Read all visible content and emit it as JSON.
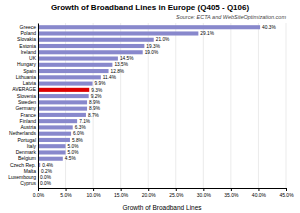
{
  "chart_data": {
    "type": "bar",
    "orientation": "horizontal",
    "title": "Growth of Broadband Lines in Europe (Q405 - Q106)",
    "xlabel": "Growth of Broadband Lines",
    "annotations": [
      "Source: ECTA and WebSiteOptimization.com"
    ],
    "categories": [
      "Cyprus",
      "Luxembourg",
      "Malta",
      "Czech Rep.",
      "Belgium",
      "Denmark",
      "Italy",
      "Portugal",
      "Netherlands",
      "Austria",
      "Finland",
      "France",
      "Germany",
      "Sweden",
      "Slovenia",
      "AVERAGE",
      "Latvia",
      "Lithuania",
      "Spain",
      "Hungary",
      "UK",
      "Ireland",
      "Estonia",
      "Slovakia",
      "Poland",
      "Greece"
    ],
    "values": [
      0.0,
      0.0,
      0.2,
      0.4,
      4.5,
      5.0,
      5.0,
      5.8,
      6.0,
      6.3,
      7.1,
      8.7,
      8.9,
      8.9,
      9.2,
      9.3,
      9.9,
      11.4,
      12.8,
      13.5,
      14.5,
      19.0,
      19.3,
      21.0,
      29.1,
      40.3
    ],
    "value_labels": [
      "0.0%",
      "0.0%",
      "0.2%",
      "0.4%",
      "4.5%",
      "5.0%",
      "5.0%",
      "5.8%",
      "6.0%",
      "6.3%",
      "7.1%",
      "8.7%",
      "8.9%",
      "8.9%",
      "9.2%",
      "9.3%",
      "9.9%",
      "11.4%",
      "12.8%",
      "13.5%",
      "14.5%",
      "19.0%",
      "19.3%",
      "21.0%",
      "29.1%",
      "40.3%"
    ],
    "data_labels": true,
    "colors": [
      "#8888cc",
      "#8888cc",
      "#8888cc",
      "#8888cc",
      "#8888cc",
      "#8888cc",
      "#8888cc",
      "#8888cc",
      "#8888cc",
      "#8888cc",
      "#8888cc",
      "#8888cc",
      "#8888cc",
      "#8888cc",
      "#8888cc",
      "#dd0000",
      "#8888cc",
      "#8888cc",
      "#8888cc",
      "#8888cc",
      "#8888cc",
      "#8888cc",
      "#8888cc",
      "#8888cc",
      "#8888cc",
      "#8888cc"
    ],
    "xlim": [
      0,
      45
    ],
    "xticks": [
      {
        "value": 0,
        "label": "0.0%"
      },
      {
        "value": 5,
        "label": "5.0%"
      },
      {
        "value": 10,
        "label": "10.0%"
      },
      {
        "value": 15,
        "label": "15.0%"
      },
      {
        "value": 20,
        "label": "20.0%"
      },
      {
        "value": 25,
        "label": "25.0%"
      },
      {
        "value": 30,
        "label": "30.0%"
      },
      {
        "value": 35,
        "label": "35.0%"
      },
      {
        "value": 40,
        "label": "40.0%"
      },
      {
        "value": 45,
        "label": "45.0%"
      }
    ],
    "grid": true
  }
}
